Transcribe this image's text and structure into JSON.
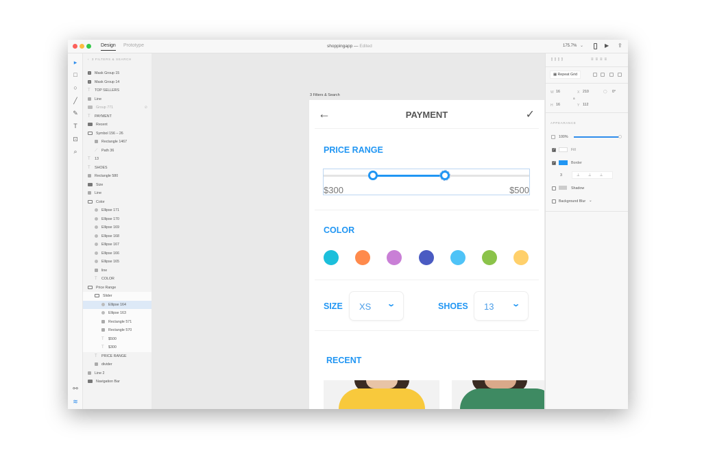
{
  "window": {
    "title": "shoppingapp",
    "status": "Edited",
    "tabs": [
      "Design",
      "Prototype"
    ],
    "zoom": "175.7%"
  },
  "layers": {
    "header": "3 FILTERS & SEARCH",
    "items": [
      {
        "label": "Mask Group 15",
        "icon": "mask",
        "indent": 0
      },
      {
        "label": "Mask Group 14",
        "icon": "mask",
        "indent": 0
      },
      {
        "label": "TOP SELLERS",
        "icon": "text",
        "indent": 0
      },
      {
        "label": "Line",
        "icon": "rect",
        "indent": 0
      },
      {
        "label": "Group 771",
        "icon": "folder-filled",
        "indent": 0,
        "hidden": true
      },
      {
        "label": "PAYMENT",
        "icon": "text",
        "indent": 0
      },
      {
        "label": "Recent",
        "icon": "folder-filled",
        "indent": 0
      },
      {
        "label": "Symbol 156 – 26",
        "icon": "folder",
        "indent": 0
      },
      {
        "label": "Rectangle 1467",
        "icon": "rect",
        "indent": 1
      },
      {
        "label": "Path 36",
        "icon": "path",
        "indent": 1
      },
      {
        "label": "13",
        "icon": "text",
        "indent": 0
      },
      {
        "label": "SHOES",
        "icon": "text",
        "indent": 0
      },
      {
        "label": "Rectangle 580",
        "icon": "rect",
        "indent": 0
      },
      {
        "label": "Size",
        "icon": "folder-filled",
        "indent": 0
      },
      {
        "label": "Line",
        "icon": "rect",
        "indent": 0
      },
      {
        "label": "Color",
        "icon": "folder",
        "indent": 0
      },
      {
        "label": "Ellipse 171",
        "icon": "ellipse",
        "indent": 1
      },
      {
        "label": "Ellipse 170",
        "icon": "ellipse",
        "indent": 1
      },
      {
        "label": "Ellipse 169",
        "icon": "ellipse",
        "indent": 1
      },
      {
        "label": "Ellipse 168",
        "icon": "ellipse",
        "indent": 1
      },
      {
        "label": "Ellipse 167",
        "icon": "ellipse",
        "indent": 1
      },
      {
        "label": "Ellipse 166",
        "icon": "ellipse",
        "indent": 1
      },
      {
        "label": "Ellipse 165",
        "icon": "ellipse",
        "indent": 1
      },
      {
        "label": "line",
        "icon": "rect",
        "indent": 1
      },
      {
        "label": "COLOR",
        "icon": "text",
        "indent": 1
      },
      {
        "label": "Price Range",
        "icon": "folder",
        "indent": 0
      },
      {
        "label": "Slider",
        "icon": "folder",
        "indent": 1,
        "group": true
      },
      {
        "label": "Ellipse 164",
        "icon": "ellipse",
        "indent": 2,
        "selected": true
      },
      {
        "label": "Ellipse 163",
        "icon": "ellipse",
        "indent": 2,
        "group": true
      },
      {
        "label": "Rectangle 571",
        "icon": "rect",
        "indent": 2,
        "group": true
      },
      {
        "label": "Rectangle 570",
        "icon": "rect",
        "indent": 2,
        "group": true
      },
      {
        "label": "$500",
        "icon": "text",
        "indent": 2,
        "group": true
      },
      {
        "label": "$300",
        "icon": "text",
        "indent": 2,
        "group": true
      },
      {
        "label": "PRICE RANGE",
        "icon": "text",
        "indent": 1
      },
      {
        "label": "divider",
        "icon": "rect",
        "indent": 1
      },
      {
        "label": "Line 2",
        "icon": "rect",
        "indent": 0
      },
      {
        "label": "Navigation Bar",
        "icon": "folder-filled",
        "indent": 0
      }
    ]
  },
  "artboard": {
    "label": "3 Filters & Search",
    "nav_title": "PAYMENT",
    "price_range": {
      "title": "PRICE RANGE",
      "min_label": "$300",
      "max_label": "$500",
      "low_fraction": 0.24,
      "high_fraction": 0.59
    },
    "color": {
      "title": "COLOR",
      "swatches": [
        "#1cbfdb",
        "#ff8a4c",
        "#c97fd6",
        "#4a5bc2",
        "#4fc3f7",
        "#8bc34a",
        "#ffd06b"
      ]
    },
    "size": {
      "label": "SIZE",
      "value": "XS"
    },
    "shoes": {
      "label": "SHOES",
      "value": "13"
    },
    "recent": {
      "title": "RECENT"
    }
  },
  "inspector": {
    "repeat_grid": "Repeat Grid",
    "w": "16",
    "h": "16",
    "x": "210",
    "y": "112",
    "rotation": "0°",
    "appearance": "APPEARANCE",
    "opacity": "100%",
    "opacity_fraction": 1.0,
    "fill": "Fill",
    "fill_color": "#ffffff",
    "border": "Border",
    "border_color": "#2196f3",
    "border_width": "3",
    "shadow": "Shadow",
    "background_blur": "Background Blur"
  },
  "accent": "#2196f3"
}
